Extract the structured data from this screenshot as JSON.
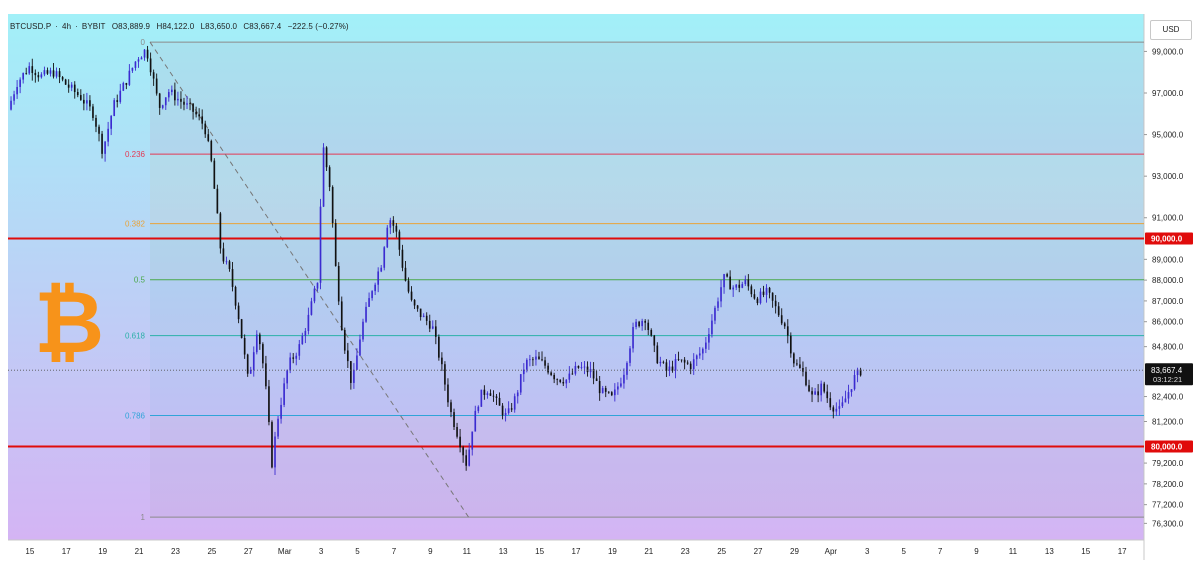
{
  "header": {
    "symbol": "BTCUSD.P",
    "interval": "4h",
    "exchange": "BYBIT",
    "open": "O83,889.9",
    "high": "H84,122.0",
    "low": "L83,650.0",
    "close": "C83,667.4",
    "change": "−222.5 (−0.27%)",
    "currency": "USD"
  },
  "colors": {
    "bg_top": "#a2f0f8",
    "bg_bottom": "#d4b4f4",
    "candle_up": "#3b2bd0",
    "candle_down": "#111111",
    "key_level": "#e00b0b",
    "logo": "#f7931a"
  },
  "logo": {
    "glyph": "₿",
    "icon": "bitcoin-logo-icon"
  },
  "chart_data": {
    "type": "candlestick",
    "ylim": [
      75500,
      100800
    ],
    "y_ticks": [
      {
        "value": 99000,
        "label": "99,000.0"
      },
      {
        "value": 97000,
        "label": "97,000.0"
      },
      {
        "value": 95000,
        "label": "95,000.0"
      },
      {
        "value": 93000,
        "label": "93,000.0"
      },
      {
        "value": 91000,
        "label": "91,000.0"
      },
      {
        "value": 89000,
        "label": "89,000.0"
      },
      {
        "value": 88000,
        "label": "88,000.0"
      },
      {
        "value": 87000,
        "label": "87,000.0"
      },
      {
        "value": 86000,
        "label": "86,000.0"
      },
      {
        "value": 84800,
        "label": "84,800.0"
      },
      {
        "value": 82400,
        "label": "82,400.0"
      },
      {
        "value": 81200,
        "label": "81,200.0"
      },
      {
        "value": 79200,
        "label": "79,200.0"
      },
      {
        "value": 78200,
        "label": "78,200.0"
      },
      {
        "value": 77200,
        "label": "77,200.0"
      },
      {
        "value": 76300,
        "label": "76,300.0"
      }
    ],
    "x_ticks": [
      {
        "day": 15,
        "label": "15"
      },
      {
        "day": 17,
        "label": "17"
      },
      {
        "day": 19,
        "label": "19"
      },
      {
        "day": 21,
        "label": "21"
      },
      {
        "day": 23,
        "label": "23"
      },
      {
        "day": 25,
        "label": "25"
      },
      {
        "day": 27,
        "label": "27"
      },
      {
        "day": 29,
        "label": "Mar"
      },
      {
        "day": 31,
        "label": "3"
      },
      {
        "day": 33,
        "label": "5"
      },
      {
        "day": 35,
        "label": "7"
      },
      {
        "day": 37,
        "label": "9"
      },
      {
        "day": 39,
        "label": "11"
      },
      {
        "day": 41,
        "label": "13"
      },
      {
        "day": 43,
        "label": "15"
      },
      {
        "day": 45,
        "label": "17"
      },
      {
        "day": 47,
        "label": "19"
      },
      {
        "day": 49,
        "label": "21"
      },
      {
        "day": 51,
        "label": "23"
      },
      {
        "day": 53,
        "label": "25"
      },
      {
        "day": 55,
        "label": "27"
      },
      {
        "day": 57,
        "label": "29"
      },
      {
        "day": 59,
        "label": "Apr"
      },
      {
        "day": 61,
        "label": "3"
      },
      {
        "day": 63,
        "label": "5"
      },
      {
        "day": 65,
        "label": "7"
      },
      {
        "day": 67,
        "label": "9"
      },
      {
        "day": 69,
        "label": "11"
      },
      {
        "day": 71,
        "label": "13"
      },
      {
        "day": 73,
        "label": "15"
      },
      {
        "day": 75,
        "label": "17"
      }
    ],
    "x_range": [
      13.8,
      76.2
    ],
    "key_levels": [
      {
        "value": 90000,
        "label": "90,000.0"
      },
      {
        "value": 80000,
        "label": "80,000.0"
      }
    ],
    "last_price": {
      "value": 83667.4,
      "label": "83,667.4",
      "countdown": "03:12:21"
    },
    "fib": {
      "anchor_high": {
        "day": 21.6,
        "value": 99450
      },
      "anchor_low": {
        "day": 39.1,
        "value": 76600
      },
      "line_end_day": 76.2,
      "levels": [
        {
          "ratio": "0",
          "value": 99450,
          "color": "#8a8a8a"
        },
        {
          "ratio": "0.236",
          "value": 94060,
          "color": "#e33a55"
        },
        {
          "ratio": "0.382",
          "value": 90720,
          "color": "#e8a33a"
        },
        {
          "ratio": "0.5",
          "value": 88020,
          "color": "#4aa84a"
        },
        {
          "ratio": "0.618",
          "value": 85330,
          "color": "#2ab0a8"
        },
        {
          "ratio": "0.786",
          "value": 81490,
          "color": "#2fa4d8"
        },
        {
          "ratio": "1",
          "value": 76600,
          "color": "#8a8a8a"
        }
      ]
    },
    "price_path": [
      [
        13.8,
        96200
      ],
      [
        14.3,
        97500
      ],
      [
        15.0,
        98300
      ],
      [
        15.6,
        97800
      ],
      [
        16.3,
        98000
      ],
      [
        17.0,
        97400
      ],
      [
        17.8,
        96800
      ],
      [
        18.5,
        96000
      ],
      [
        19.0,
        94200
      ],
      [
        19.6,
        96400
      ],
      [
        20.3,
        97600
      ],
      [
        20.9,
        98700
      ],
      [
        21.4,
        99100
      ],
      [
        21.7,
        98000
      ],
      [
        22.1,
        96300
      ],
      [
        22.6,
        97100
      ],
      [
        23.3,
        96600
      ],
      [
        24.0,
        96100
      ],
      [
        24.6,
        95400
      ],
      [
        25.0,
        93500
      ],
      [
        25.5,
        89300
      ],
      [
        26.0,
        88300
      ],
      [
        26.5,
        86100
      ],
      [
        27.0,
        83100
      ],
      [
        27.5,
        85800
      ],
      [
        27.9,
        83400
      ],
      [
        28.3,
        79200
      ],
      [
        28.6,
        81300
      ],
      [
        29.2,
        83900
      ],
      [
        29.8,
        84800
      ],
      [
        30.3,
        86200
      ],
      [
        30.8,
        88000
      ],
      [
        31.1,
        94500
      ],
      [
        31.5,
        92400
      ],
      [
        31.8,
        88600
      ],
      [
        32.2,
        85300
      ],
      [
        32.7,
        82900
      ],
      [
        33.2,
        85600
      ],
      [
        33.8,
        87600
      ],
      [
        34.3,
        88800
      ],
      [
        34.7,
        91100
      ],
      [
        35.1,
        90400
      ],
      [
        35.6,
        88100
      ],
      [
        36.0,
        86800
      ],
      [
        36.6,
        86200
      ],
      [
        37.1,
        85800
      ],
      [
        37.6,
        83900
      ],
      [
        38.1,
        81700
      ],
      [
        38.6,
        80300
      ],
      [
        39.0,
        79100
      ],
      [
        39.3,
        80900
      ],
      [
        39.7,
        82400
      ],
      [
        40.2,
        82800
      ],
      [
        40.7,
        82000
      ],
      [
        41.2,
        81400
      ],
      [
        41.7,
        82400
      ],
      [
        42.2,
        84000
      ],
      [
        42.8,
        84200
      ],
      [
        43.3,
        83900
      ],
      [
        43.9,
        83300
      ],
      [
        44.5,
        83200
      ],
      [
        45.1,
        83800
      ],
      [
        45.8,
        83600
      ],
      [
        46.4,
        82600
      ],
      [
        47.0,
        82300
      ],
      [
        47.6,
        83500
      ],
      [
        48.2,
        85800
      ],
      [
        48.8,
        86200
      ],
      [
        49.4,
        84300
      ],
      [
        50.0,
        83600
      ],
      [
        50.6,
        84100
      ],
      [
        51.3,
        83900
      ],
      [
        52.0,
        84700
      ],
      [
        52.6,
        86500
      ],
      [
        53.1,
        88100
      ],
      [
        53.7,
        87600
      ],
      [
        54.3,
        87900
      ],
      [
        54.9,
        87100
      ],
      [
        55.5,
        87400
      ],
      [
        56.0,
        86600
      ],
      [
        56.5,
        85800
      ],
      [
        57.0,
        84000
      ],
      [
        57.5,
        83500
      ],
      [
        58.0,
        82300
      ],
      [
        58.5,
        82900
      ],
      [
        59.0,
        82000
      ],
      [
        59.5,
        81700
      ],
      [
        59.9,
        82500
      ],
      [
        60.3,
        83300
      ],
      [
        60.7,
        83700
      ]
    ]
  }
}
